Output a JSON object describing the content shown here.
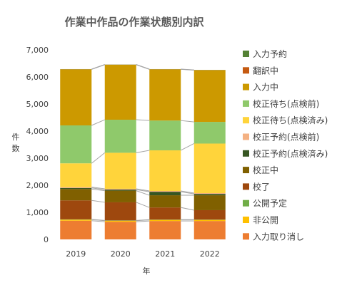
{
  "chart_data": {
    "type": "bar",
    "stacked": true,
    "title": "作業中作品の作業状態別内訳",
    "xlabel": "年",
    "ylabel": "件数",
    "categories": [
      "2019",
      "2020",
      "2021",
      "2022"
    ],
    "ylim": [
      0,
      7000
    ],
    "yticks": [
      0,
      1000,
      2000,
      3000,
      4000,
      5000,
      6000,
      7000
    ],
    "ytick_labels": [
      "0",
      "1,000",
      "2,000",
      "3,000",
      "4,000",
      "5,000",
      "6,000",
      "7,000"
    ],
    "grid": false,
    "legend_position": "right",
    "series_lines": true,
    "series": [
      {
        "name": "入力取り消し",
        "color": "#ED7D31",
        "values": [
          690,
          650,
          680,
          680
        ]
      },
      {
        "name": "非公開",
        "color": "#FFC000",
        "values": [
          40,
          40,
          40,
          40
        ]
      },
      {
        "name": "公開予定",
        "color": "#70AD47",
        "values": [
          10,
          10,
          10,
          10
        ]
      },
      {
        "name": "校了",
        "color": "#9E480E",
        "values": [
          700,
          670,
          450,
          350
        ]
      },
      {
        "name": "校正中",
        "color": "#806000",
        "values": [
          420,
          430,
          450,
          550
        ]
      },
      {
        "name": "校正予約(点検済み)",
        "color": "#375623",
        "values": [
          40,
          40,
          130,
          50
        ]
      },
      {
        "name": "校正予約(点検前)",
        "color": "#F4B183",
        "values": [
          30,
          30,
          30,
          30
        ]
      },
      {
        "name": "校正待ち(点検済み)",
        "color": "#FFD43B",
        "values": [
          880,
          1330,
          1500,
          1830
        ]
      },
      {
        "name": "校正待ち(点検前)",
        "color": "#8FC96B",
        "values": [
          1400,
          1220,
          1100,
          800
        ]
      },
      {
        "name": "入力中",
        "color": "#CC9900",
        "values": [
          2070,
          2030,
          1890,
          1910
        ]
      },
      {
        "name": "翻訳中",
        "color": "#C55A11",
        "values": [
          5,
          5,
          5,
          5
        ]
      },
      {
        "name": "入力予約",
        "color": "#548235",
        "values": [
          5,
          5,
          5,
          5
        ]
      }
    ]
  }
}
